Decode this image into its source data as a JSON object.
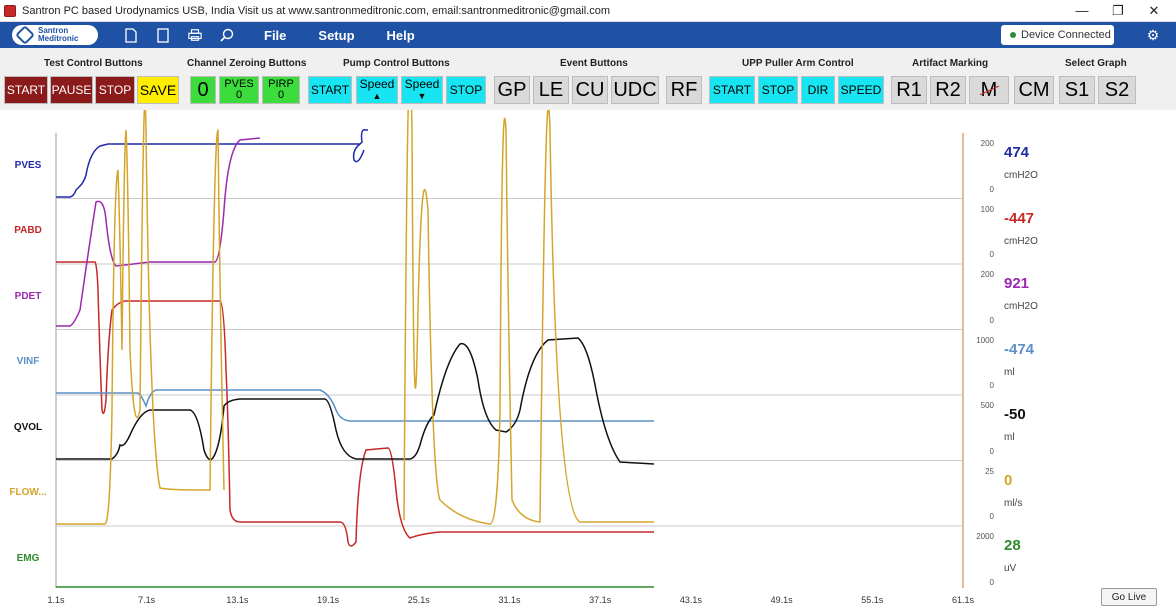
{
  "window": {
    "title": "Santron PC based Urodynamics USB, India Visit us at www.santronmeditronic.com, email:santronmeditronic@gmail.com",
    "minimize": "—",
    "maximize": "❐",
    "close": "✕"
  },
  "menubar": {
    "logo_line1": "Santron",
    "logo_line2": "Meditronic",
    "file": "File",
    "setup": "Setup",
    "help": "Help",
    "device_status": "Device Connected",
    "gear": "⚙"
  },
  "toolbar": {
    "groups": {
      "test_control": "Test Control Buttons",
      "channel_zeroing": "Channel Zeroing Buttons",
      "pump_control": "Pump Control Buttons",
      "event": "Event Buttons",
      "upp": "UPP Puller Arm Control",
      "artifact": "Artifact Marking",
      "select_graph": "Select Graph"
    },
    "start": "START",
    "pause": "PAUSE",
    "stop": "STOP",
    "save": "SAVE",
    "zero": "0",
    "pves": "PVES",
    "pves_val": "0",
    "pirp": "PIRP",
    "pirp_val": "0",
    "pump_start": "START",
    "speed_up": "Speed",
    "speed_up_arrow": "▲",
    "speed_down": "Speed",
    "speed_down_arrow": "▼",
    "pump_stop": "STOP",
    "gp": "GP",
    "le": "LE",
    "cu": "CU",
    "udc": "UDC",
    "rf": "RF",
    "upp_start": "START",
    "upp_stop": "STOP",
    "upp_dir": "DIR",
    "upp_speed": "SPEED",
    "r1": "R1",
    "r2": "R2",
    "m": "M",
    "cm": "CM",
    "s1": "S1",
    "s2": "S2"
  },
  "channels": [
    {
      "label": "PVES",
      "color": "#1f2aa8",
      "value": "474",
      "unit": "cmH2O",
      "scale_max": "200",
      "scale_min": "0"
    },
    {
      "label": "PABD",
      "color": "#c62828",
      "value": "-447",
      "unit": "cmH2O",
      "scale_max": "100",
      "scale_min": "0"
    },
    {
      "label": "PDET",
      "color": "#9c27b0",
      "value": "921",
      "unit": "cmH2O",
      "scale_max": "200",
      "scale_min": "0"
    },
    {
      "label": "VINF",
      "color": "#5b8fc7",
      "value": "-474",
      "unit": "ml",
      "scale_max": "1000",
      "scale_min": "0"
    },
    {
      "label": "QVOL",
      "color": "#111111",
      "value": "-50",
      "unit": "ml",
      "scale_max": "500",
      "scale_min": "0"
    },
    {
      "label": "FLOW...",
      "color": "#d4a52a",
      "value": "0",
      "unit": "ml/s",
      "scale_max": "25",
      "scale_min": "0"
    },
    {
      "label": "EMG",
      "color": "#2e8b2e",
      "value": "28",
      "unit": "uV",
      "scale_max": "2000",
      "scale_min": "0"
    }
  ],
  "time_axis": {
    "ticks": [
      "1.1s",
      "7.1s",
      "13.1s",
      "19.1s",
      "25.1s",
      "31.1s",
      "37.1s",
      "43.1s",
      "49.1s",
      "55.1s",
      "61.1s"
    ],
    "range_s": [
      1.1,
      61.1
    ]
  },
  "go_live": "Go Live"
}
